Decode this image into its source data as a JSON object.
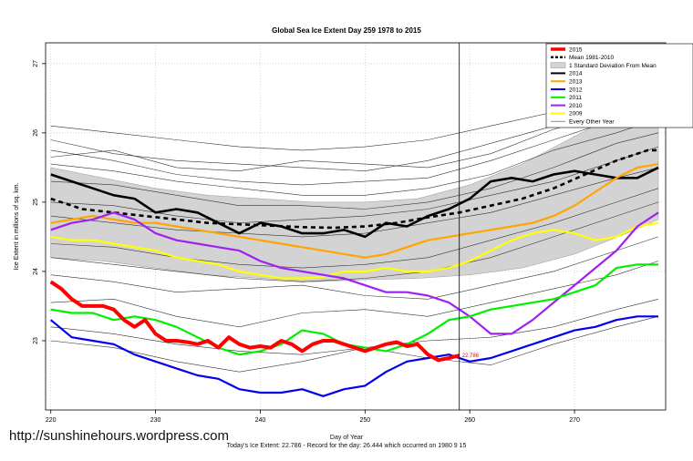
{
  "chart_data": {
    "type": "line",
    "title": "Global Sea Ice Extent Day 259 1978 to 2015",
    "xlabel": "Day of Year",
    "ylabel": "Ice Extent in millions of sq. km.",
    "xlim": [
      219.5,
      278.7
    ],
    "ylim": [
      22.0,
      27.3
    ],
    "x_ticks": [
      "220",
      "230",
      "240",
      "250",
      "260",
      "270"
    ],
    "x_tick_values": [
      220,
      230,
      240,
      250,
      260,
      270
    ],
    "y_ticks": [
      "23",
      "24",
      "25",
      "26",
      "27"
    ],
    "y_tick_values": [
      23,
      24,
      25,
      26,
      27
    ],
    "grid": true,
    "marker_day": 259,
    "current_label": "22.786",
    "current_point": [
      259,
      22.786
    ],
    "legend_position": "top-right",
    "legend": [
      {
        "label": "2015",
        "color": "#ff0000",
        "style": "thick"
      },
      {
        "label": "Mean 1981-2010",
        "color": "#000000",
        "style": "dashed"
      },
      {
        "label": "1 Standard Deviation From Mean",
        "color": "#d3d3d3",
        "style": "box"
      },
      {
        "label": "2014",
        "color": "#000000",
        "style": "solid"
      },
      {
        "label": "2013",
        "color": "#ffa500",
        "style": "solid"
      },
      {
        "label": "2012",
        "color": "#0000ee",
        "style": "solid"
      },
      {
        "label": "2011",
        "color": "#00ee00",
        "style": "solid"
      },
      {
        "label": "2010",
        "color": "#a020f0",
        "style": "solid"
      },
      {
        "label": "2009",
        "color": "#ffff00",
        "style": "solid"
      },
      {
        "label": "Every Other Year",
        "color": "#555555",
        "style": "thin"
      }
    ],
    "band": {
      "x": [
        220,
        225,
        230,
        235,
        240,
        245,
        250,
        255,
        260,
        265,
        270,
        275,
        278
      ],
      "upper": [
        25.5,
        25.35,
        25.2,
        25.1,
        25.05,
        25.0,
        25.0,
        25.05,
        25.25,
        25.55,
        25.95,
        26.35,
        26.6
      ],
      "lower": [
        24.2,
        24.15,
        24.05,
        23.95,
        23.9,
        23.85,
        23.88,
        23.9,
        23.95,
        24.05,
        24.25,
        24.55,
        24.75
      ]
    },
    "series": [
      {
        "name": "Mean 1981-2010",
        "color": "#000000",
        "width": 2.6,
        "dash": "5,4",
        "x": [
          220,
          223,
          226,
          229,
          232,
          235,
          238,
          241,
          244,
          247,
          250,
          253,
          256,
          259,
          262,
          265,
          268,
          271,
          274,
          277,
          278
        ],
        "y": [
          25.05,
          24.9,
          24.85,
          24.8,
          24.75,
          24.7,
          24.68,
          24.66,
          24.64,
          24.63,
          24.65,
          24.7,
          24.78,
          24.85,
          24.95,
          25.05,
          25.2,
          25.4,
          25.6,
          25.75,
          25.75
        ]
      },
      {
        "name": "2014",
        "color": "#000000",
        "width": 2.6,
        "dash": "",
        "x": [
          220,
          222,
          224,
          226,
          228,
          230,
          232,
          234,
          236,
          238,
          240,
          242,
          244,
          246,
          248,
          250,
          252,
          254,
          256,
          258,
          260,
          262,
          264,
          266,
          268,
          270,
          272,
          274,
          276,
          278
        ],
        "y": [
          25.4,
          25.3,
          25.2,
          25.1,
          25.05,
          24.85,
          24.9,
          24.85,
          24.7,
          24.55,
          24.7,
          24.65,
          24.55,
          24.55,
          24.6,
          24.5,
          24.7,
          24.65,
          24.8,
          24.9,
          25.05,
          25.3,
          25.35,
          25.3,
          25.4,
          25.45,
          25.4,
          25.35,
          25.35,
          25.5
        ]
      },
      {
        "name": "2013",
        "color": "#ffa500",
        "width": 2.2,
        "dash": "",
        "x": [
          220,
          222,
          224,
          226,
          228,
          230,
          232,
          234,
          236,
          238,
          240,
          242,
          244,
          246,
          248,
          250,
          252,
          254,
          256,
          258,
          260,
          262,
          264,
          266,
          268,
          270,
          272,
          274,
          276,
          278
        ],
        "y": [
          24.7,
          24.75,
          24.8,
          24.75,
          24.7,
          24.7,
          24.65,
          24.6,
          24.55,
          24.5,
          24.45,
          24.4,
          24.35,
          24.3,
          24.25,
          24.2,
          24.25,
          24.35,
          24.45,
          24.5,
          24.55,
          24.6,
          24.65,
          24.7,
          24.8,
          24.95,
          25.15,
          25.35,
          25.5,
          25.55
        ]
      },
      {
        "name": "2009",
        "color": "#ffff00",
        "width": 2.2,
        "dash": "",
        "x": [
          220,
          222,
          224,
          226,
          228,
          230,
          232,
          234,
          236,
          238,
          240,
          242,
          244,
          246,
          248,
          250,
          252,
          254,
          256,
          258,
          260,
          262,
          264,
          266,
          268,
          270,
          272,
          274,
          276,
          278
        ],
        "y": [
          24.5,
          24.45,
          24.45,
          24.4,
          24.35,
          24.3,
          24.2,
          24.15,
          24.1,
          24.0,
          23.95,
          23.9,
          23.9,
          23.92,
          24.0,
          24.0,
          24.05,
          24.0,
          24.0,
          24.05,
          24.15,
          24.3,
          24.45,
          24.55,
          24.6,
          24.55,
          24.45,
          24.5,
          24.65,
          24.7
        ]
      },
      {
        "name": "2010",
        "color": "#a020f0",
        "width": 2.2,
        "dash": "",
        "x": [
          220,
          222,
          224,
          226,
          228,
          230,
          232,
          234,
          236,
          238,
          240,
          242,
          244,
          246,
          248,
          250,
          252,
          254,
          256,
          258,
          260,
          262,
          264,
          266,
          268,
          270,
          272,
          274,
          276,
          278
        ],
        "y": [
          24.6,
          24.7,
          24.75,
          24.85,
          24.75,
          24.55,
          24.45,
          24.4,
          24.35,
          24.3,
          24.15,
          24.05,
          24.0,
          23.95,
          23.9,
          23.8,
          23.7,
          23.7,
          23.65,
          23.55,
          23.35,
          23.1,
          23.1,
          23.3,
          23.55,
          23.8,
          24.05,
          24.3,
          24.65,
          24.85
        ]
      },
      {
        "name": "2011",
        "color": "#00ee00",
        "width": 2.2,
        "dash": "",
        "x": [
          220,
          222,
          224,
          226,
          228,
          230,
          232,
          234,
          236,
          238,
          240,
          242,
          244,
          246,
          248,
          250,
          252,
          254,
          256,
          258,
          260,
          262,
          264,
          266,
          268,
          270,
          272,
          274,
          276,
          278
        ],
        "y": [
          23.45,
          23.4,
          23.4,
          23.3,
          23.35,
          23.3,
          23.2,
          23.05,
          22.9,
          22.8,
          22.85,
          22.95,
          23.15,
          23.1,
          22.95,
          22.9,
          22.85,
          22.95,
          23.1,
          23.3,
          23.35,
          23.45,
          23.5,
          23.55,
          23.6,
          23.7,
          23.8,
          24.05,
          24.1,
          24.1
        ]
      },
      {
        "name": "2012",
        "color": "#0000ee",
        "width": 2.2,
        "dash": "",
        "x": [
          220,
          222,
          224,
          226,
          228,
          230,
          232,
          234,
          236,
          238,
          240,
          242,
          244,
          246,
          248,
          250,
          252,
          254,
          256,
          258,
          260,
          262,
          264,
          266,
          268,
          270,
          272,
          274,
          276,
          278
        ],
        "y": [
          23.3,
          23.05,
          23.0,
          22.95,
          22.8,
          22.7,
          22.6,
          22.5,
          22.45,
          22.3,
          22.25,
          22.25,
          22.3,
          22.2,
          22.3,
          22.35,
          22.55,
          22.7,
          22.75,
          22.8,
          22.7,
          22.75,
          22.85,
          22.95,
          23.05,
          23.15,
          23.2,
          23.3,
          23.35,
          23.35
        ]
      },
      {
        "name": "2015",
        "color": "#ff0000",
        "width": 4,
        "dash": "",
        "x": [
          220,
          221,
          222,
          223,
          224,
          225,
          226,
          227,
          228,
          229,
          230,
          231,
          232,
          233,
          234,
          235,
          236,
          237,
          238,
          239,
          240,
          241,
          242,
          243,
          244,
          245,
          246,
          247,
          248,
          249,
          250,
          251,
          252,
          253,
          254,
          255,
          256,
          257,
          258,
          259
        ],
        "y": [
          23.85,
          23.75,
          23.6,
          23.5,
          23.5,
          23.5,
          23.45,
          23.3,
          23.2,
          23.3,
          23.1,
          23.0,
          23.0,
          22.98,
          22.95,
          23.0,
          22.9,
          23.05,
          22.95,
          22.9,
          22.92,
          22.9,
          23.0,
          22.95,
          22.85,
          22.95,
          23.0,
          23.0,
          22.95,
          22.9,
          22.85,
          22.9,
          22.95,
          22.98,
          22.92,
          22.95,
          22.8,
          22.72,
          22.75,
          22.786
        ]
      }
    ],
    "thin_series": [
      {
        "name": "Every Other Year A",
        "x": [
          220,
          226,
          232,
          238,
          244,
          250,
          256,
          262,
          268,
          274,
          278
        ],
        "y": [
          26.1,
          26.0,
          25.9,
          25.8,
          25.75,
          25.8,
          25.9,
          26.1,
          26.3,
          26.6,
          26.75
        ]
      },
      {
        "name": "Every Other Year B",
        "x": [
          220,
          226,
          232,
          238,
          244,
          250,
          256,
          262,
          268,
          274,
          278
        ],
        "y": [
          25.9,
          25.7,
          25.6,
          25.55,
          25.5,
          25.45,
          25.6,
          25.85,
          26.1,
          26.4,
          26.55
        ]
      },
      {
        "name": "Every Other Year C",
        "x": [
          220,
          226,
          232,
          238,
          244,
          250,
          256,
          262,
          268,
          274,
          278
        ],
        "y": [
          25.75,
          25.6,
          25.4,
          25.3,
          25.25,
          25.3,
          25.35,
          25.6,
          25.9,
          26.2,
          26.3
        ]
      },
      {
        "name": "Every Other Year D",
        "x": [
          220,
          226,
          232,
          238,
          244,
          250,
          256,
          262,
          268,
          274,
          278
        ],
        "y": [
          25.55,
          25.45,
          25.3,
          25.2,
          25.1,
          25.1,
          25.2,
          25.4,
          25.75,
          26.0,
          26.2
        ]
      },
      {
        "name": "Every Other Year E",
        "x": [
          220,
          226,
          232,
          238,
          244,
          250,
          256,
          262,
          268,
          274,
          278
        ],
        "y": [
          25.3,
          25.25,
          25.1,
          24.95,
          24.95,
          24.9,
          25.0,
          25.2,
          25.5,
          25.85,
          26.0
        ]
      },
      {
        "name": "Every Other Year F",
        "x": [
          220,
          226,
          232,
          238,
          244,
          250,
          256,
          262,
          268,
          274,
          278
        ],
        "y": [
          25.0,
          24.95,
          24.8,
          24.7,
          24.75,
          24.8,
          24.9,
          25.1,
          25.3,
          25.6,
          25.8
        ]
      },
      {
        "name": "Every Other Year G",
        "x": [
          220,
          226,
          232,
          238,
          244,
          250,
          256,
          262,
          268,
          274,
          278
        ],
        "y": [
          24.8,
          24.7,
          24.6,
          24.55,
          24.5,
          24.55,
          24.7,
          24.85,
          25.1,
          25.35,
          25.5
        ]
      },
      {
        "name": "Every Other Year H",
        "x": [
          220,
          226,
          232,
          238,
          244,
          250,
          256,
          262,
          268,
          274,
          278
        ],
        "y": [
          24.4,
          24.35,
          24.2,
          24.1,
          24.05,
          24.1,
          24.2,
          24.45,
          24.7,
          25.0,
          25.2
        ]
      },
      {
        "name": "Every Other Year I",
        "x": [
          220,
          226,
          232,
          238,
          244,
          250,
          256,
          262,
          268,
          274,
          278
        ],
        "y": [
          24.2,
          24.1,
          24.0,
          23.9,
          23.85,
          23.9,
          24.0,
          24.2,
          24.5,
          24.8,
          25.0
        ]
      },
      {
        "name": "Every Other Year J",
        "x": [
          220,
          226,
          232,
          238,
          244,
          250,
          256,
          262,
          268,
          274,
          278
        ],
        "y": [
          23.95,
          23.85,
          23.7,
          23.75,
          23.8,
          23.65,
          23.6,
          23.8,
          24.0,
          24.3,
          24.5
        ]
      },
      {
        "name": "Every Other Year K",
        "x": [
          220,
          226,
          232,
          238,
          244,
          250,
          256,
          262,
          268,
          274,
          278
        ],
        "y": [
          23.55,
          23.6,
          23.35,
          23.2,
          23.4,
          23.45,
          23.35,
          23.55,
          23.75,
          23.95,
          24.15
        ]
      },
      {
        "name": "Every Other Year L",
        "x": [
          220,
          226,
          232,
          238,
          244,
          250,
          256,
          262,
          268,
          274,
          278
        ],
        "y": [
          23.2,
          23.1,
          22.95,
          22.85,
          22.8,
          22.9,
          23.0,
          23.05,
          23.2,
          23.45,
          23.6
        ]
      },
      {
        "name": "Every Other Year M",
        "x": [
          220,
          226,
          232,
          238,
          244,
          250,
          256,
          262,
          268,
          274,
          278
        ],
        "y": [
          23.0,
          22.9,
          22.7,
          22.55,
          22.7,
          22.9,
          22.75,
          22.65,
          22.95,
          23.2,
          23.35
        ]
      },
      {
        "name": "Every Other Year N",
        "x": [
          220,
          226,
          232,
          238,
          244,
          250,
          256,
          262,
          268,
          274,
          278
        ],
        "y": [
          25.65,
          25.75,
          25.5,
          25.45,
          25.6,
          25.55,
          25.5,
          25.7,
          26.05,
          26.3,
          26.45
        ]
      }
    ]
  },
  "site_url": "http://sunshinehours.wordpress.com",
  "footer": {
    "line1": "Day of Year",
    "line2": "Today's Ice Extent: 22.786  -  Record for the day: 26.444 which occurred on 1980 9 15"
  }
}
